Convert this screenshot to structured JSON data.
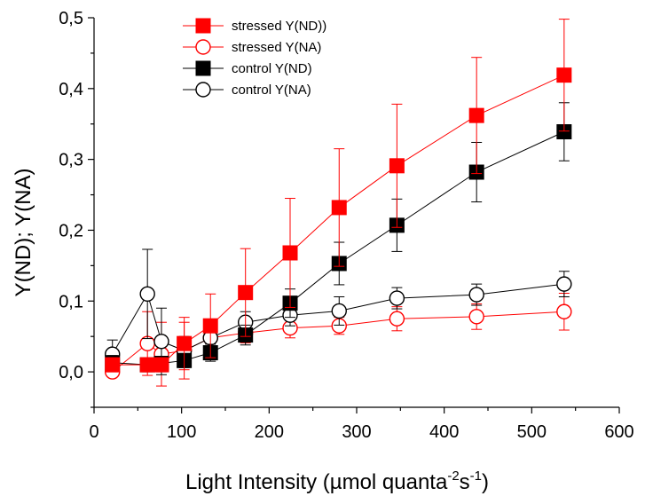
{
  "chart_data": {
    "type": "scatter",
    "title": "",
    "xlabel": "Light Intensity (µmol quanta",
    "xlabel_sup1": "-2",
    "xlabel_mid": "s",
    "xlabel_sup2": "-1",
    "xlabel_end": ")",
    "ylabel": "Y(ND); Y(NA)",
    "xlim": [
      0,
      600
    ],
    "ylim": [
      -0.05,
      0.5
    ],
    "xticks": [
      0,
      100,
      200,
      300,
      400,
      500,
      600
    ],
    "xtick_labels": [
      "0",
      "100",
      "200",
      "300",
      "400",
      "500",
      "600"
    ],
    "yticks": [
      0.0,
      0.1,
      0.2,
      0.3,
      0.4,
      0.5
    ],
    "ytick_labels": [
      "0,0",
      "0,1",
      "0,2",
      "0,3",
      "0,4",
      "0,5"
    ],
    "grid": false,
    "legend_position": "top-center",
    "series": [
      {
        "name": "stressed Y(ND))",
        "color": "#ff0000",
        "marker": "square-filled",
        "x": [
          21,
          61,
          77,
          103,
          133,
          173,
          224,
          280,
          346,
          437,
          537
        ],
        "y": [
          0.01,
          0.01,
          0.01,
          0.04,
          0.065,
          0.112,
          0.168,
          0.232,
          0.291,
          0.362,
          0.419
        ],
        "err": [
          0.01,
          0.01,
          0.01,
          0.037,
          0.045,
          0.062,
          0.077,
          0.083,
          0.087,
          0.082,
          0.079
        ]
      },
      {
        "name": "stressed Y(NA)",
        "color": "#ff0000",
        "marker": "circle-open",
        "x": [
          21,
          61,
          77,
          103,
          133,
          173,
          224,
          280,
          346,
          437,
          537
        ],
        "y": [
          0.0,
          0.04,
          0.025,
          0.03,
          0.048,
          0.055,
          0.062,
          0.065,
          0.075,
          0.078,
          0.085
        ],
        "err": [
          0.005,
          0.045,
          0.045,
          0.04,
          0.018,
          0.014,
          0.014,
          0.012,
          0.017,
          0.018,
          0.026
        ]
      },
      {
        "name": "control Y(ND)",
        "color": "#000000",
        "marker": "square-filled",
        "x": [
          21,
          61,
          77,
          103,
          133,
          173,
          224,
          280,
          346,
          437,
          537
        ],
        "y": [
          0.013,
          0.01,
          0.012,
          0.016,
          0.027,
          0.052,
          0.097,
          0.153,
          0.207,
          0.282,
          0.339
        ],
        "err": [
          0.01,
          0.008,
          0.01,
          0.01,
          0.012,
          0.014,
          0.02,
          0.03,
          0.037,
          0.042,
          0.041
        ]
      },
      {
        "name": "control Y(NA)",
        "color": "#000000",
        "marker": "circle-open",
        "x": [
          21,
          61,
          77,
          103,
          133,
          173,
          224,
          280,
          346,
          437,
          537
        ],
        "y": [
          0.025,
          0.11,
          0.043,
          0.03,
          0.048,
          0.07,
          0.08,
          0.086,
          0.104,
          0.109,
          0.124
        ],
        "err": [
          0.02,
          0.063,
          0.047,
          0.02,
          0.015,
          0.015,
          0.015,
          0.02,
          0.015,
          0.015,
          0.018
        ]
      }
    ]
  }
}
